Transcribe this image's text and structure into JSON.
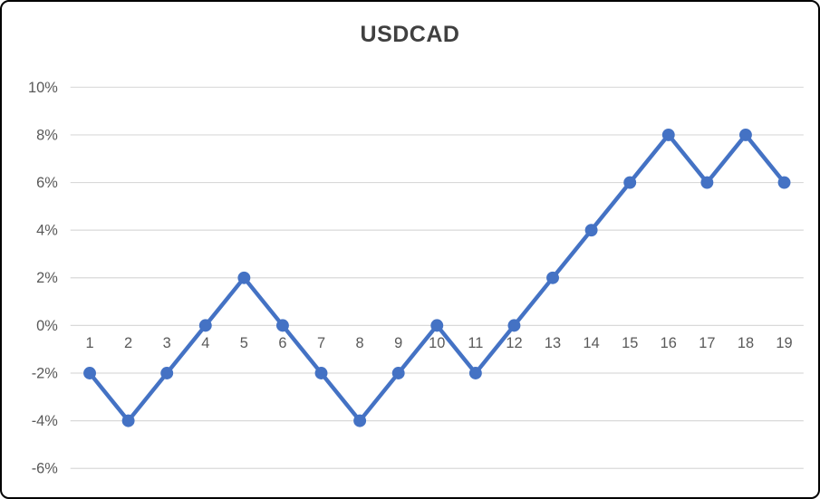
{
  "window": {
    "background_color": "#ffffff",
    "border_color": "#000000"
  },
  "chart_data": {
    "type": "line",
    "title": "USDCAD",
    "x": [
      1,
      2,
      3,
      4,
      5,
      6,
      7,
      8,
      9,
      10,
      11,
      12,
      13,
      14,
      15,
      16,
      17,
      18,
      19
    ],
    "values": [
      -2,
      -4,
      -2,
      0,
      2,
      0,
      -2,
      -4,
      -2,
      0,
      -2,
      0,
      2,
      4,
      6,
      8,
      6,
      8,
      6
    ],
    "ylim": [
      -6,
      10
    ],
    "ytick_step": 2,
    "ytick_label_suffix": "%",
    "xlabel": "",
    "ylabel": "",
    "grid": "horizontal",
    "legend": "none",
    "series_name": "USDCAD",
    "line_color": "#4472C4",
    "marker": "circle",
    "marker_color": "#4472C4",
    "gridline_color": "#D9D9D9",
    "tick_label_color": "#595959",
    "title_color": "#404040"
  }
}
